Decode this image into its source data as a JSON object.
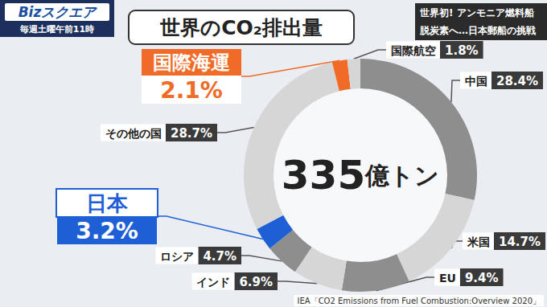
{
  "header": {
    "logo": "Bizスクエア",
    "schedule": "毎週土曜午前11時",
    "caption": [
      "世界初! アンモニア燃料船",
      "脱炭素へ…日本郵船の挑戦"
    ]
  },
  "chart_data": {
    "type": "pie",
    "title": "世界のCO₂排出量",
    "center_text": "335億トン",
    "source": "IEA「CO2 Emissions from Fuel Combustion:Overview 2020」",
    "categories": [
      "中国",
      "米国",
      "EU",
      "インド",
      "ロシア",
      "日本",
      "その他の国",
      "国際海運",
      "国際航空"
    ],
    "values": [
      28.4,
      14.7,
      9.4,
      6.9,
      4.7,
      3.2,
      28.7,
      2.1,
      1.8
    ],
    "value_labels": [
      "28.4%",
      "14.7%",
      "9.4%",
      "6.9%",
      "4.7%",
      "3.2%",
      "28.7%",
      "2.1%",
      "1.8%"
    ],
    "colors": [
      "#8e8e8e",
      "#d6d6d6",
      "#8e8e8e",
      "#d6d6d6",
      "#8e8e8e",
      "#1e5fd6",
      "#d6d6d6",
      "#f06a28",
      "#d6d6d6"
    ],
    "data_labels": true
  }
}
